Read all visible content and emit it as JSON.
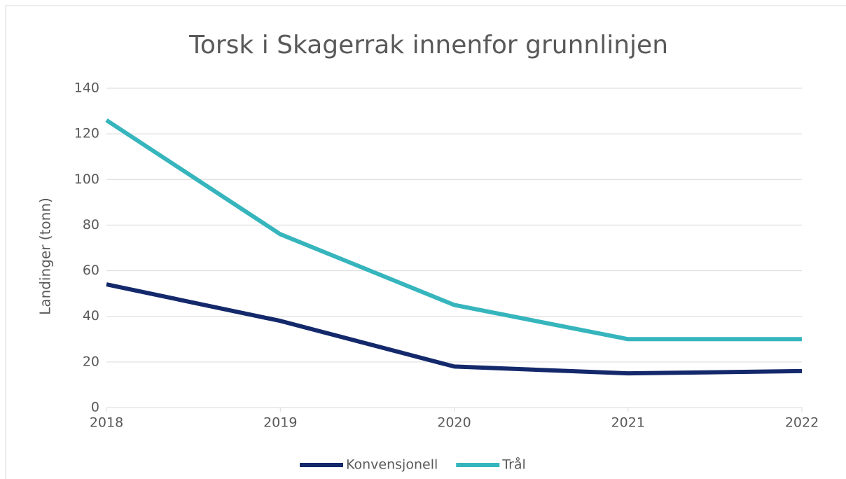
{
  "chart_data": {
    "type": "line",
    "title": "Torsk i Skagerrak innenfor grunnlinjen",
    "y_label": "Landinger (tonn)",
    "x": [
      2018,
      2019,
      2020,
      2021,
      2022
    ],
    "xlim": [
      2018,
      2022
    ],
    "xticks": [
      2018,
      2019,
      2020,
      2021,
      2022
    ],
    "ylim": [
      0,
      140
    ],
    "yticks": [
      0,
      20,
      40,
      60,
      80,
      100,
      120,
      140
    ],
    "grid": true,
    "legend": "bottom",
    "series": [
      {
        "name": "Konvensjonell",
        "color": "#14296b",
        "values": [
          54,
          38,
          18,
          15,
          16
        ]
      },
      {
        "name": "Trål",
        "color": "#36b5bd",
        "values": [
          126,
          76,
          45,
          30,
          30
        ]
      }
    ]
  }
}
